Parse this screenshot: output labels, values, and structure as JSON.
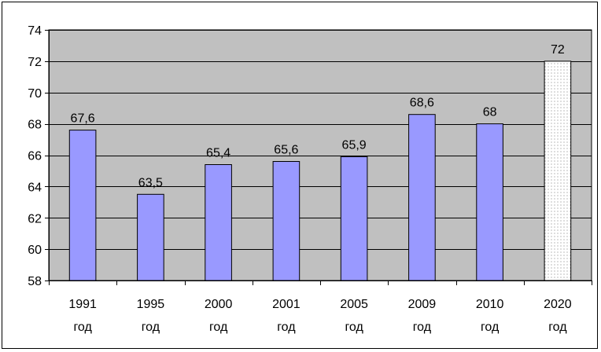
{
  "chart_data": {
    "type": "bar",
    "title": "",
    "xlabel": "",
    "ylabel": "",
    "categories": [
      [
        "1991",
        "год"
      ],
      [
        "1995",
        "год"
      ],
      [
        "2000",
        "год"
      ],
      [
        "2001",
        "год"
      ],
      [
        "2005",
        "год"
      ],
      [
        "2009",
        "год"
      ],
      [
        "2010",
        "год"
      ],
      [
        "2020",
        "год"
      ]
    ],
    "values": [
      67.6,
      63.5,
      65.4,
      65.6,
      65.9,
      68.6,
      68,
      72
    ],
    "data_labels": [
      "67,6",
      "63,5",
      "65,4",
      "65,6",
      "65,9",
      "68,6",
      "68",
      "72"
    ],
    "ylim": [
      58,
      74
    ],
    "yticks": [
      58,
      60,
      62,
      64,
      66,
      68,
      70,
      72,
      74
    ],
    "ytick_labels": [
      "58",
      "60",
      "62",
      "64",
      "66",
      "68",
      "70",
      "72",
      "74"
    ],
    "grid": true,
    "legend": "none",
    "colors": {
      "plot_background": "#c0c0c0",
      "bar_fill": "#9999ff",
      "bar_fill_forecast": "#ffffff",
      "bar_stroke": "#000000",
      "gridline": "#000000"
    },
    "forecast_category_index": 7,
    "forecast_bar_pattern": "dotted"
  }
}
